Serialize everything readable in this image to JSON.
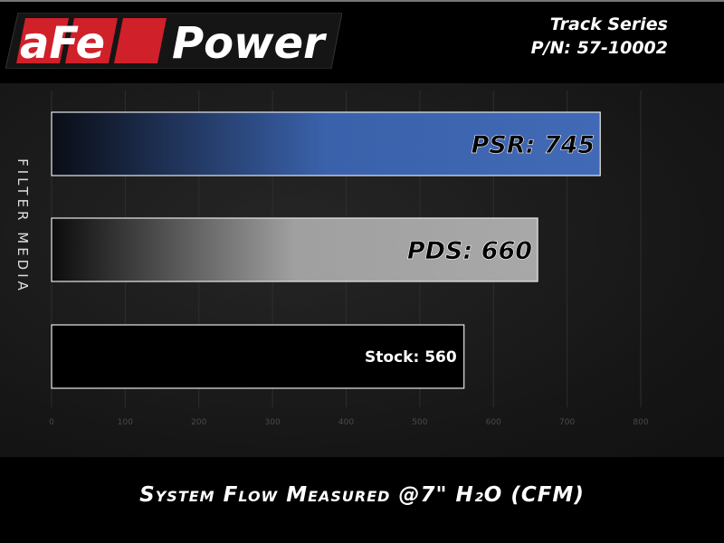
{
  "header": {
    "brand": "aFePower",
    "series": "Track Series",
    "part_number": "P/N: 57-10002"
  },
  "chart_data": {
    "type": "bar",
    "orientation": "horizontal",
    "categories": [
      "PSR",
      "PDS",
      "Stock"
    ],
    "values": [
      745,
      660,
      560
    ],
    "data_labels": [
      "PSR: 745",
      "PDS: 660",
      "Stock: 560"
    ],
    "xlabel": "System Flow Measured @7\" H₂O (CFM)",
    "ylabel": "FILTER MEDIA",
    "xlim": [
      0,
      800
    ],
    "xticks": [
      "0",
      "100",
      "200",
      "300",
      "400",
      "500",
      "600",
      "700",
      "800"
    ],
    "grid": true,
    "colors": {
      "PSR": "#3f68b4",
      "PDS": "#a6a6a6",
      "Stock": "#000000"
    }
  }
}
